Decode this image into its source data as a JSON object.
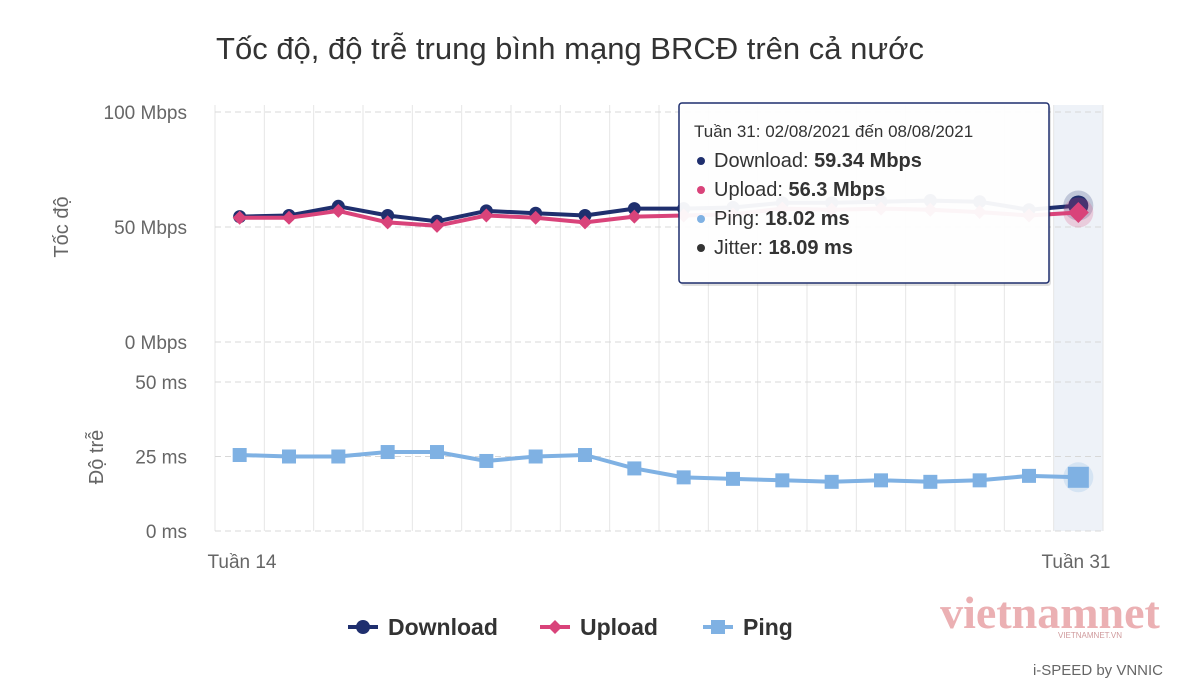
{
  "chart_data": {
    "type": "line",
    "title": "Tốc độ, độ trễ trung bình mạng BRCĐ trên cả nước",
    "x_first_label": "Tuần 14",
    "x_last_label": "Tuần 31",
    "x": [
      14,
      15,
      16,
      17,
      18,
      19,
      20,
      21,
      22,
      23,
      24,
      25,
      26,
      27,
      28,
      29,
      30,
      31
    ],
    "panels": {
      "speed": {
        "ylabel": "Tốc độ",
        "ylim": [
          0,
          100
        ],
        "yticks": [
          {
            "value": 0,
            "label": "0 Mbps"
          },
          {
            "value": 50,
            "label": "50 Mbps"
          },
          {
            "value": 100,
            "label": "100 Mbps"
          }
        ]
      },
      "latency": {
        "ylabel": "Độ trễ",
        "ylim": [
          0,
          50
        ],
        "yticks": [
          {
            "value": 0,
            "label": "0 ms"
          },
          {
            "value": 25,
            "label": "25 ms"
          },
          {
            "value": 50,
            "label": "50 ms"
          }
        ]
      }
    },
    "series": [
      {
        "name": "Download",
        "panel": "speed",
        "marker": "circle",
        "color": "#1f2f6e",
        "values": [
          54.5,
          55,
          59,
          55,
          52.5,
          57,
          56,
          55,
          58,
          58,
          58.5,
          60.5,
          60.5,
          61,
          61.5,
          61,
          57.5,
          59.34
        ]
      },
      {
        "name": "Upload",
        "panel": "speed",
        "marker": "diamond",
        "color": "#d9437a",
        "values": [
          54,
          54,
          57,
          52,
          50.5,
          55,
          54,
          52,
          54.5,
          55,
          55.5,
          58,
          57.5,
          58,
          57.5,
          56.5,
          55,
          56.3
        ]
      },
      {
        "name": "Ping",
        "panel": "latency",
        "marker": "square",
        "color": "#7fb1e3",
        "values": [
          25.5,
          25,
          25,
          26.5,
          26.5,
          23.5,
          25,
          25.5,
          21,
          18,
          17.5,
          17,
          16.5,
          17,
          16.5,
          17,
          18.5,
          18.02
        ]
      }
    ],
    "tooltip": {
      "header": "Tuần 31: 02/08/2021 đến 08/08/2021",
      "rows": [
        {
          "label": "Download: ",
          "value": "59.34 Mbps",
          "color": "#1f2f6e"
        },
        {
          "label": "Upload: ",
          "value": "56.3 Mbps",
          "color": "#d9437a"
        },
        {
          "label": "Ping: ",
          "value": "18.02 ms",
          "color": "#7fb1e3"
        },
        {
          "label": "Jitter: ",
          "value": "18.09 ms",
          "color": "#333333"
        }
      ]
    },
    "legend": [
      "Download",
      "Upload",
      "Ping"
    ],
    "legend_position": "bottom-center",
    "grid": true,
    "highlighted_x": 31
  },
  "credit": "i-SPEED by VNNIC",
  "watermark": {
    "text": "vietnamnet",
    "subtext": "VIETNAMNET.VN"
  }
}
